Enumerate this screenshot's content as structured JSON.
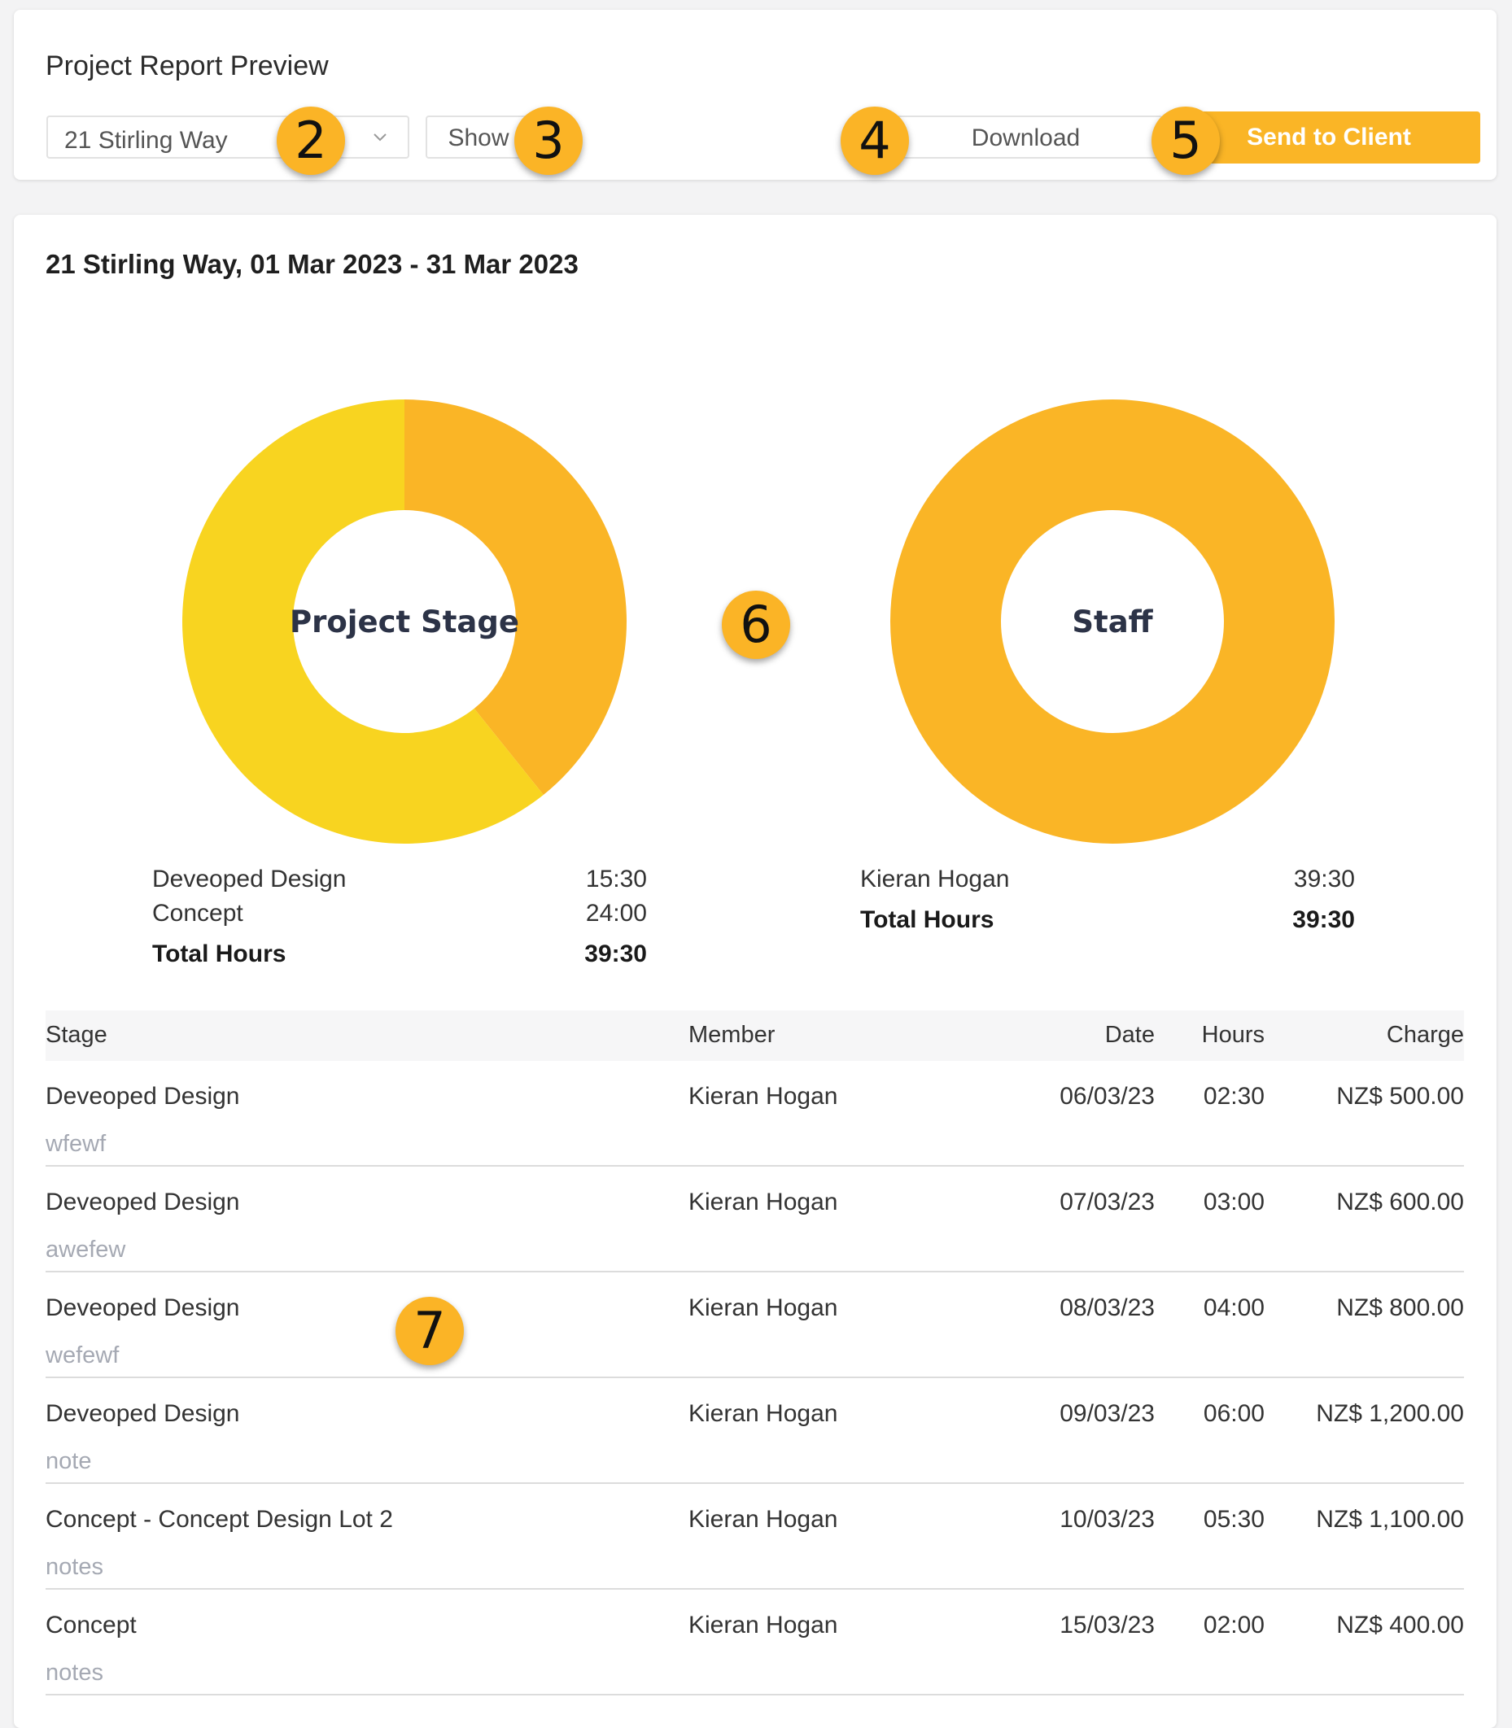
{
  "header": {
    "title": "Project Report Preview",
    "project_select": "21 Stirling Way",
    "show_label": "Show",
    "download_label": "Download",
    "send_label": "Send to Client"
  },
  "badges": [
    "2",
    "3",
    "4",
    "5",
    "6",
    "7"
  ],
  "colors": {
    "accent": "#fab526",
    "donut_yellow": "#f8d420",
    "donut_orange": "#fab526"
  },
  "report": {
    "title": "21 Stirling Way, 01 Mar 2023 - 31 Mar 2023",
    "stage_chart_label": "Project Stage",
    "staff_chart_label": "Staff",
    "stage_legend": [
      {
        "name": "Deveoped Design",
        "value": "15:30"
      },
      {
        "name": "Concept",
        "value": "24:00"
      }
    ],
    "stage_total_label": "Total Hours",
    "stage_total_value": "39:30",
    "staff_legend": [
      {
        "name": "Kieran Hogan",
        "value": "39:30"
      }
    ],
    "staff_total_label": "Total Hours",
    "staff_total_value": "39:30"
  },
  "chart_data": [
    {
      "type": "pie",
      "title": "Project Stage",
      "categories": [
        "Deveoped Design",
        "Concept"
      ],
      "values": [
        15.5,
        24.0
      ],
      "colors": [
        "#fab526",
        "#f8d420"
      ]
    },
    {
      "type": "pie",
      "title": "Staff",
      "categories": [
        "Kieran Hogan"
      ],
      "values": [
        39.5
      ],
      "colors": [
        "#fab526"
      ]
    }
  ],
  "table": {
    "headers": {
      "stage": "Stage",
      "member": "Member",
      "date": "Date",
      "hours": "Hours",
      "charge": "Charge"
    },
    "rows": [
      {
        "stage": "Deveoped Design",
        "note": "wfewf",
        "member": "Kieran Hogan",
        "date": "06/03/23",
        "hours": "02:30",
        "charge": "NZ$ 500.00"
      },
      {
        "stage": "Deveoped Design",
        "note": "awefew",
        "member": "Kieran Hogan",
        "date": "07/03/23",
        "hours": "03:00",
        "charge": "NZ$ 600.00"
      },
      {
        "stage": "Deveoped Design",
        "note": "wefewf",
        "member": "Kieran Hogan",
        "date": "08/03/23",
        "hours": "04:00",
        "charge": "NZ$ 800.00"
      },
      {
        "stage": "Deveoped Design",
        "note": "note",
        "member": "Kieran Hogan",
        "date": "09/03/23",
        "hours": "06:00",
        "charge": "NZ$ 1,200.00"
      },
      {
        "stage": "Concept - Concept Design Lot 2",
        "note": "notes",
        "member": "Kieran Hogan",
        "date": "10/03/23",
        "hours": "05:30",
        "charge": "NZ$ 1,100.00"
      },
      {
        "stage": "Concept",
        "note": "notes",
        "member": "Kieran Hogan",
        "date": "15/03/23",
        "hours": "02:00",
        "charge": "NZ$ 400.00"
      }
    ]
  }
}
